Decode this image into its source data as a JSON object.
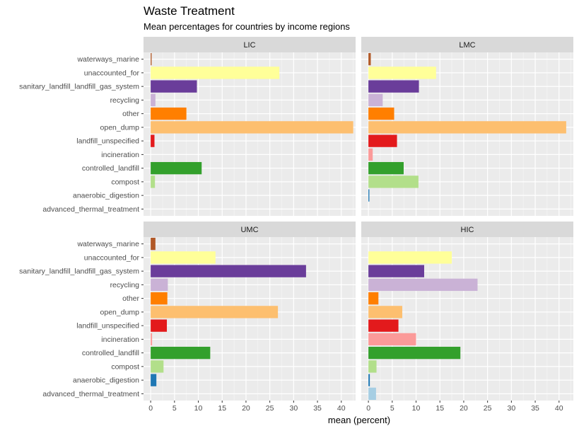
{
  "chart_data": {
    "type": "bar",
    "orientation": "horizontal",
    "title": "Waste Treatment",
    "subtitle": "Mean percentages for countries by income regions",
    "xlabel": "mean (percent)",
    "ylabel": "",
    "xlim": [
      -1.5,
      43
    ],
    "x_ticks": [
      0,
      5,
      10,
      15,
      20,
      25,
      30,
      35,
      40
    ],
    "grid": true,
    "facet_order": [
      "LIC",
      "LMC",
      "UMC",
      "HIC"
    ],
    "categories": [
      "waterways_marine",
      "unaccounted_for",
      "sanitary_landfill_landfill_gas_system",
      "recycling",
      "other",
      "open_dump",
      "landfill_unspecified",
      "incineration",
      "controlled_landfill",
      "compost",
      "anaerobic_digestion",
      "advanced_thermal_treatment"
    ],
    "colors": {
      "waterways_marine": "#B15928",
      "unaccounted_for": "#FFFF99",
      "sanitary_landfill_landfill_gas_system": "#6A3D9A",
      "recycling": "#CAB2D6",
      "other": "#FF7F00",
      "open_dump": "#FDBF6F",
      "landfill_unspecified": "#E31A1C",
      "incineration": "#FB9A99",
      "controlled_landfill": "#33A02C",
      "compost": "#B2DF8A",
      "anaerobic_digestion": "#1F78B4",
      "advanced_thermal_treatment": "#A6CEE3"
    },
    "facets": [
      {
        "name": "LIC",
        "values": {
          "waterways_marine": 0.2,
          "unaccounted_for": 27.0,
          "sanitary_landfill_landfill_gas_system": 9.7,
          "recycling": 1.0,
          "other": 7.5,
          "open_dump": 42.5,
          "landfill_unspecified": 0.8,
          "incineration": 0.0,
          "controlled_landfill": 10.7,
          "compost": 0.9,
          "anaerobic_digestion": 0.0,
          "advanced_thermal_treatment": 0.0
        }
      },
      {
        "name": "LMC",
        "values": {
          "waterways_marine": 0.5,
          "unaccounted_for": 14.2,
          "sanitary_landfill_landfill_gas_system": 10.6,
          "recycling": 3.0,
          "other": 5.4,
          "open_dump": 41.5,
          "landfill_unspecified": 6.0,
          "incineration": 0.9,
          "controlled_landfill": 7.4,
          "compost": 10.5,
          "anaerobic_digestion": 0.2,
          "advanced_thermal_treatment": 0.0
        }
      },
      {
        "name": "UMC",
        "values": {
          "waterways_marine": 1.0,
          "unaccounted_for": 13.6,
          "sanitary_landfill_landfill_gas_system": 32.6,
          "recycling": 3.6,
          "other": 3.5,
          "open_dump": 26.7,
          "landfill_unspecified": 3.4,
          "incineration": 0.3,
          "controlled_landfill": 12.5,
          "compost": 2.7,
          "anaerobic_digestion": 1.2,
          "advanced_thermal_treatment": 0.0
        }
      },
      {
        "name": "HIC",
        "values": {
          "waterways_marine": 0.0,
          "unaccounted_for": 17.5,
          "sanitary_landfill_landfill_gas_system": 11.7,
          "recycling": 22.9,
          "other": 2.1,
          "open_dump": 7.1,
          "landfill_unspecified": 6.3,
          "incineration": 10.0,
          "controlled_landfill": 19.3,
          "compost": 1.7,
          "anaerobic_digestion": 0.3,
          "advanced_thermal_treatment": 1.6
        }
      }
    ]
  }
}
